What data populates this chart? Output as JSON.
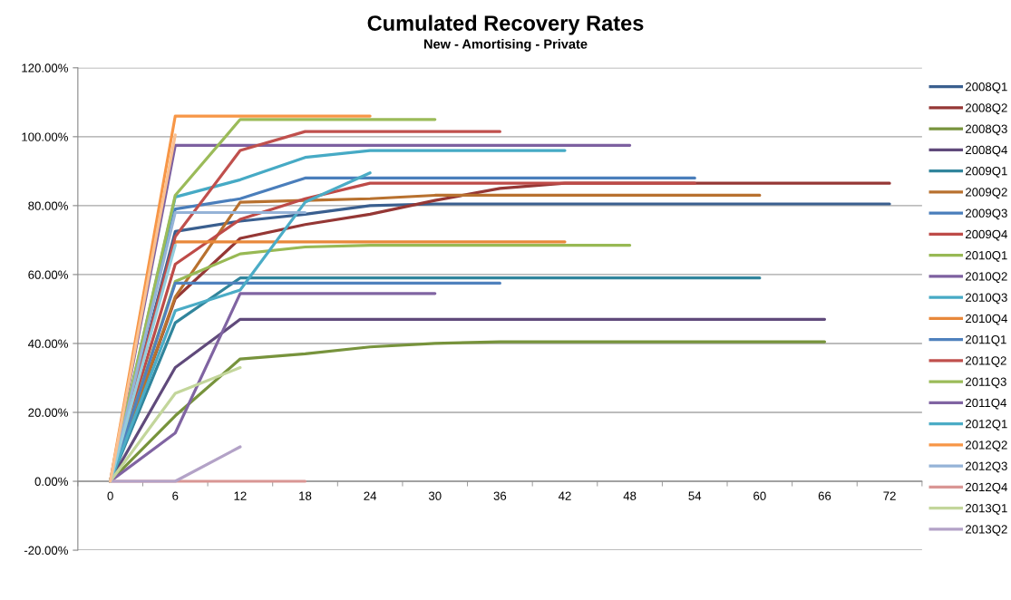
{
  "chart_data": {
    "type": "line",
    "title": "Cumulated Recovery Rates",
    "subtitle": "New - Amortising - Private",
    "categories": [
      "0",
      "6",
      "12",
      "18",
      "24",
      "30",
      "36",
      "42",
      "48",
      "54",
      "60",
      "66",
      "72"
    ],
    "ylim": [
      -20,
      120
    ],
    "yticks": [
      {
        "value": -20,
        "label": "-20.00%"
      },
      {
        "value": 0,
        "label": "0.00%"
      },
      {
        "value": 20,
        "label": "20.00%"
      },
      {
        "value": 40,
        "label": "40.00%"
      },
      {
        "value": 60,
        "label": "60.00%"
      },
      {
        "value": 80,
        "label": "80.00%"
      },
      {
        "value": 100,
        "label": "100.00%"
      },
      {
        "value": 120,
        "label": "120.00%"
      }
    ],
    "grid": "y",
    "legend": "right",
    "marker": "none",
    "line_style": "solid",
    "series": [
      {
        "name": "2008Q1",
        "color": "#3a5f8f",
        "values": [
          0,
          72.5,
          75.5,
          77.5,
          80,
          80.5,
          80.5,
          80.5,
          80.5,
          80.5,
          80.5,
          80.5,
          80.5
        ]
      },
      {
        "name": "2008Q2",
        "color": "#953735",
        "values": [
          0,
          53,
          70.5,
          74.5,
          77.5,
          81.5,
          85,
          86.5,
          86.5,
          86.5,
          86.5,
          86.5,
          86.5
        ]
      },
      {
        "name": "2008Q3",
        "color": "#77933c",
        "values": [
          0,
          19,
          35.5,
          37,
          39,
          40,
          40.5,
          40.5,
          40.5,
          40.5,
          40.5,
          40.5,
          null
        ]
      },
      {
        "name": "2008Q4",
        "color": "#604a7b",
        "values": [
          0,
          33,
          47,
          47,
          47,
          47,
          47,
          47,
          47,
          47,
          47,
          47,
          null
        ]
      },
      {
        "name": "2009Q1",
        "color": "#31859c",
        "values": [
          0,
          46,
          59,
          59,
          59,
          59,
          59,
          59,
          59,
          59,
          59,
          null,
          null
        ]
      },
      {
        "name": "2009Q2",
        "color": "#b8712f",
        "values": [
          0,
          53.5,
          81,
          81.5,
          82,
          83,
          83,
          83,
          83,
          83,
          83,
          null,
          null
        ]
      },
      {
        "name": "2009Q3",
        "color": "#4a7ebb",
        "values": [
          0,
          79,
          82,
          88,
          88,
          88,
          88,
          88,
          88,
          88,
          null,
          null,
          null
        ]
      },
      {
        "name": "2009Q4",
        "color": "#be4b48",
        "values": [
          0,
          63,
          76,
          82,
          86.5,
          86.5,
          86.5,
          86.5,
          86.5,
          86.5,
          null,
          null,
          null
        ]
      },
      {
        "name": "2010Q1",
        "color": "#98b954",
        "values": [
          0,
          58,
          66,
          68,
          68.5,
          68.5,
          68.5,
          68.5,
          68.5,
          null,
          null,
          null,
          null
        ]
      },
      {
        "name": "2010Q2",
        "color": "#7d60a0",
        "values": [
          0,
          97.5,
          97.5,
          97.5,
          97.5,
          97.5,
          97.5,
          97.5,
          97.5,
          null,
          null,
          null,
          null
        ]
      },
      {
        "name": "2010Q3",
        "color": "#46aac5",
        "values": [
          0,
          82.5,
          87.5,
          94,
          96,
          96,
          96,
          96,
          null,
          null,
          null,
          null,
          null
        ]
      },
      {
        "name": "2010Q4",
        "color": "#e8883a",
        "values": [
          0,
          69.5,
          69.5,
          69.5,
          69.5,
          69.5,
          69.5,
          69.5,
          null,
          null,
          null,
          null,
          null
        ]
      },
      {
        "name": "2011Q1",
        "color": "#4f81bd",
        "values": [
          0,
          57.5,
          57.5,
          57.5,
          57.5,
          57.5,
          57.5,
          null,
          null,
          null,
          null,
          null,
          null
        ]
      },
      {
        "name": "2011Q2",
        "color": "#c0504d",
        "values": [
          0,
          71,
          96,
          101.5,
          101.5,
          101.5,
          101.5,
          null,
          null,
          null,
          null,
          null,
          null
        ]
      },
      {
        "name": "2011Q3",
        "color": "#9bbb59",
        "values": [
          0,
          83,
          105,
          105,
          105,
          105,
          null,
          null,
          null,
          null,
          null,
          null,
          null
        ]
      },
      {
        "name": "2011Q4",
        "color": "#8064a2",
        "values": [
          0,
          14,
          54.5,
          54.5,
          54.5,
          54.5,
          null,
          null,
          null,
          null,
          null,
          null,
          null
        ]
      },
      {
        "name": "2012Q1",
        "color": "#4bacc6",
        "values": [
          0,
          49.5,
          55.5,
          81,
          89.5,
          null,
          null,
          null,
          null,
          null,
          null,
          null,
          null
        ]
      },
      {
        "name": "2012Q2",
        "color": "#f79646",
        "values": [
          0,
          106,
          106,
          106,
          106,
          null,
          null,
          null,
          null,
          null,
          null,
          null,
          null
        ]
      },
      {
        "name": "2012Q3",
        "color": "#95b3d7",
        "values": [
          0,
          78,
          78,
          78,
          null,
          null,
          null,
          null,
          null,
          null,
          null,
          null,
          null
        ]
      },
      {
        "name": "2012Q4",
        "color": "#d99694",
        "values": [
          0,
          0,
          0,
          0,
          null,
          null,
          null,
          null,
          null,
          null,
          null,
          null,
          null
        ]
      },
      {
        "name": "2013Q1",
        "color": "#c3d69b",
        "values": [
          0,
          25.5,
          33,
          null,
          null,
          null,
          null,
          null,
          null,
          null,
          null,
          null,
          null
        ]
      },
      {
        "name": "2013Q2",
        "color": "#b3a2c7",
        "values": [
          0,
          0,
          10,
          null,
          null,
          null,
          null,
          null,
          null,
          null,
          null,
          null,
          null
        ]
      },
      {
        "color": "#93cddd",
        "values": [
          0,
          68.5,
          null,
          null,
          null,
          null,
          null,
          null,
          null,
          null,
          null,
          null,
          null
        ]
      },
      {
        "color": "#fac090",
        "values": [
          0,
          100.5,
          null,
          null,
          null,
          null,
          null,
          null,
          null,
          null,
          null,
          null,
          null
        ]
      }
    ]
  }
}
